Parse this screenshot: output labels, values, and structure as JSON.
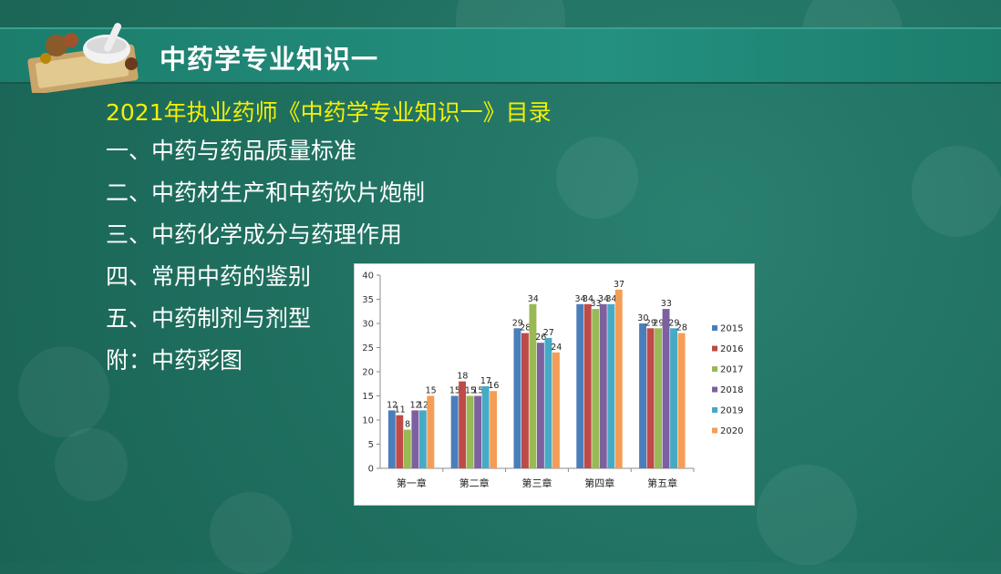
{
  "header": {
    "title": "中药学专业知识一"
  },
  "content": {
    "subtitle": "2021年执业药师《中药学专业知识一》目录",
    "items": [
      "一、中药与药品质量标准",
      "二、中药材生产和中药饮片炮制",
      "三、中药化学成分与药理作用",
      "四、常用中药的鉴别",
      "五、中药制剂与剂型",
      "附：中药彩图"
    ]
  },
  "chart_data": {
    "type": "bar",
    "categories": [
      "第一章",
      "第二章",
      "第三章",
      "第四章",
      "第五章"
    ],
    "series": [
      {
        "name": "2015",
        "values": [
          12,
          15,
          29,
          34,
          30
        ],
        "color": "#4a7ebb"
      },
      {
        "name": "2016",
        "values": [
          11,
          18,
          28,
          34,
          29
        ],
        "color": "#be4b48"
      },
      {
        "name": "2017",
        "values": [
          8,
          15,
          34,
          33,
          29
        ],
        "color": "#98b954"
      },
      {
        "name": "2018",
        "values": [
          12,
          15,
          26,
          34,
          33
        ],
        "color": "#7d60a0"
      },
      {
        "name": "2019",
        "values": [
          12,
          17,
          27,
          34,
          29
        ],
        "color": "#46aac5"
      },
      {
        "name": "2020",
        "values": [
          15,
          16,
          24,
          37,
          28
        ],
        "color": "#f59d56"
      }
    ],
    "ylim": [
      0,
      40
    ],
    "yticks": [
      0,
      5,
      10,
      15,
      20,
      25,
      30,
      35,
      40
    ],
    "legend": "right",
    "data_labels": true,
    "grid": false
  }
}
